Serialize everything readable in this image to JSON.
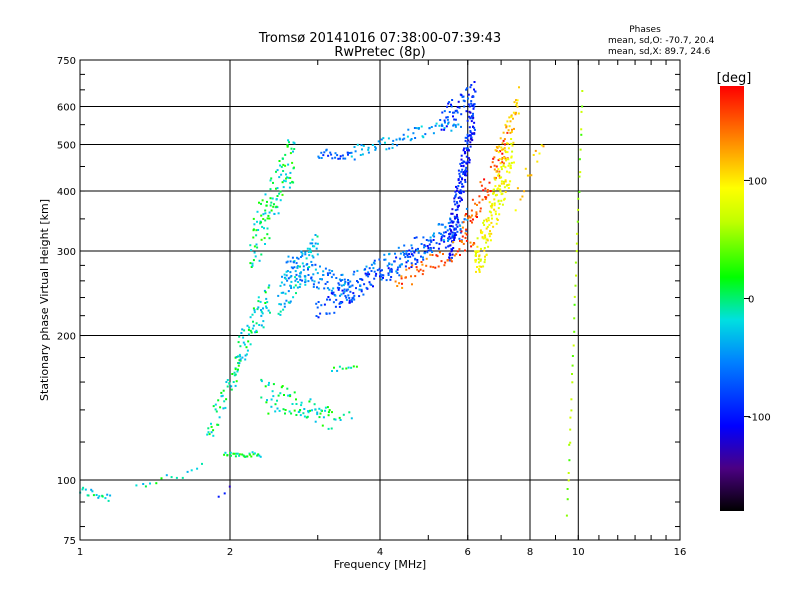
{
  "chart_data": {
    "type": "scatter",
    "title": "Tromsø 20141016 07:38:00-07:39:43",
    "subtitle": "RwPretec (8p)",
    "xlabel": "Frequency [MHz]",
    "ylabel": "Stationary phase Virtual Height [km]",
    "x_scale": "log",
    "y_scale": "log",
    "xlim": [
      1,
      16
    ],
    "ylim": [
      75,
      750
    ],
    "x_ticks": [
      1,
      2,
      4,
      6,
      8,
      10,
      16
    ],
    "x_tick_labels": [
      "1",
      "2",
      "4",
      "6",
      "8",
      "10",
      "16"
    ],
    "y_ticks": [
      75,
      100,
      200,
      300,
      400,
      500,
      600,
      750
    ],
    "y_tick_labels": [
      "75",
      "100",
      "200",
      "300",
      "400",
      "500",
      "600",
      "750"
    ],
    "grid_x": [
      2,
      4,
      6,
      8,
      10
    ],
    "grid_y": [
      100,
      200,
      300,
      400,
      500,
      600
    ],
    "legend": {
      "heading": "Phases",
      "line1": "mean, sd,O: -70.7, 20.4",
      "line2": "mean, sd,X:  89.7, 24.6"
    },
    "colorbar": {
      "label": "[deg]",
      "range": [
        -180,
        180
      ],
      "ticks": [
        100,
        0,
        -100
      ],
      "tick_labels": [
        "100",
        "0",
        "-100"
      ]
    },
    "series": [
      {
        "traces": [
          {
            "x0": 1.0,
            "x1": 1.15,
            "h0": 95,
            "h1": 92,
            "ph": -25,
            "n": 18,
            "spread": 0.02
          },
          {
            "x0": 1.3,
            "x1": 1.75,
            "h0": 98,
            "h1": 105,
            "ph": -15,
            "n": 14,
            "spread": 0.025
          },
          {
            "x0": 1.9,
            "x1": 2.0,
            "h0": 92,
            "h1": 95,
            "ph": -110,
            "n": 3,
            "spread": 0.02
          },
          {
            "x0": 1.95,
            "x1": 2.3,
            "h0": 113,
            "h1": 113,
            "ph": -10,
            "n": 30,
            "spread": 0.01
          },
          {
            "x0": 1.8,
            "x1": 2.1,
            "h0": 125,
            "h1": 175,
            "ph": -15,
            "n": 45,
            "spread": 0.06
          },
          {
            "x0": 2.05,
            "x1": 2.4,
            "h0": 180,
            "h1": 240,
            "ph": -20,
            "n": 70,
            "spread": 0.08
          },
          {
            "x0": 2.3,
            "x1": 3.2,
            "h0": 155,
            "h1": 135,
            "ph": -15,
            "n": 55,
            "spread": 0.05
          },
          {
            "x0": 2.4,
            "x1": 3.5,
            "h0": 140,
            "h1": 136,
            "ph": -10,
            "n": 30,
            "spread": 0.02
          },
          {
            "x0": 3.2,
            "x1": 3.6,
            "h0": 170,
            "h1": 172,
            "ph": -15,
            "n": 10,
            "spread": 0.01
          },
          {
            "x0": 2.2,
            "x1": 2.7,
            "h0": 300,
            "h1": 480,
            "ph": -10,
            "n": 120,
            "spread": 0.12
          },
          {
            "x0": 2.5,
            "x1": 3.0,
            "h0": 240,
            "h1": 300,
            "ph": -35,
            "n": 90,
            "spread": 0.08
          },
          {
            "x0": 2.6,
            "x1": 3.5,
            "h0": 280,
            "h1": 250,
            "ph": -60,
            "n": 90,
            "spread": 0.05
          },
          {
            "x0": 3.0,
            "x1": 3.5,
            "h0": 480,
            "h1": 470,
            "ph": -75,
            "n": 25,
            "spread": 0.02
          },
          {
            "x0": 3.5,
            "x1": 5.8,
            "h0": 480,
            "h1": 560,
            "ph": -45,
            "n": 70,
            "spread": 0.03
          },
          {
            "x0": 5.3,
            "x1": 6.2,
            "h0": 560,
            "h1": 640,
            "ph": -90,
            "n": 50,
            "spread": 0.05
          },
          {
            "x0": 3.0,
            "x1": 5.8,
            "h0": 225,
            "h1": 330,
            "ph": -90,
            "n": 160,
            "spread": 0.04
          },
          {
            "x0": 3.3,
            "x1": 6.0,
            "h0": 245,
            "h1": 350,
            "ph": -60,
            "n": 110,
            "spread": 0.05
          },
          {
            "x0": 5.5,
            "x1": 6.2,
            "h0": 300,
            "h1": 600,
            "ph": -100,
            "n": 200,
            "spread": 0.1
          },
          {
            "x0": 4.3,
            "x1": 6.2,
            "h0": 255,
            "h1": 320,
            "ph": 150,
            "n": 60,
            "spread": 0.04
          },
          {
            "x0": 5.8,
            "x1": 7.2,
            "h0": 320,
            "h1": 500,
            "ph": 160,
            "n": 70,
            "spread": 0.06
          },
          {
            "x0": 6.2,
            "x1": 7.4,
            "h0": 280,
            "h1": 480,
            "ph": 85,
            "n": 160,
            "spread": 0.1
          },
          {
            "x0": 6.8,
            "x1": 7.6,
            "h0": 450,
            "h1": 620,
            "ph": 110,
            "n": 50,
            "spread": 0.06
          },
          {
            "x0": 7.5,
            "x1": 8.5,
            "h0": 380,
            "h1": 520,
            "ph": 110,
            "n": 15,
            "spread": 0.05
          },
          {
            "x0": 9.5,
            "x1": 10.2,
            "h0": 85,
            "h1": 640,
            "ph": 40,
            "n": 40,
            "spread": 0.02
          }
        ]
      }
    ]
  }
}
